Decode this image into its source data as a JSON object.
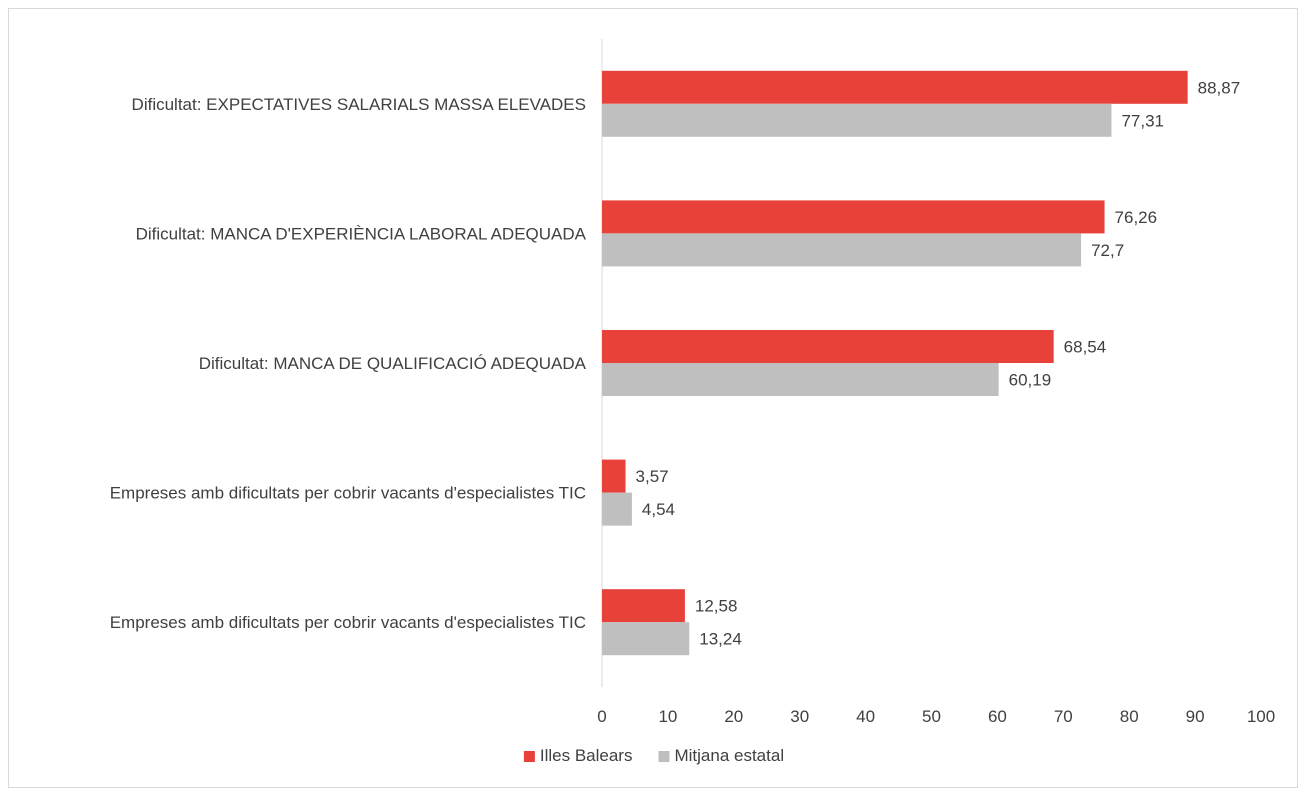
{
  "chart_data": {
    "type": "bar",
    "orientation": "horizontal",
    "categories": [
      "Dificultat: EXPECTATIVES SALARIALS MASSA ELEVADES",
      "Dificultat: MANCA D'EXPERIÈNCIA LABORAL ADEQUADA",
      "Dificultat: MANCA DE QUALIFICACIÓ ADEQUADA",
      "Empreses amb dificultats per cobrir vacants d'especialistes TIC",
      "Empreses amb dificultats per cobrir vacants d'especialistes TIC"
    ],
    "series": [
      {
        "name": "Illes Balears",
        "color": "#e8413a",
        "values": [
          88.87,
          76.26,
          68.54,
          3.57,
          12.58
        ],
        "labels": [
          "88,87",
          "76,26",
          "68,54",
          "3,57",
          "12,58"
        ]
      },
      {
        "name": "Mitjana estatal",
        "color": "#bfbfbf",
        "values": [
          77.31,
          72.7,
          60.19,
          4.54,
          13.24
        ],
        "labels": [
          "77,31",
          "72,7",
          "60,19",
          "4,54",
          "13,24"
        ]
      }
    ],
    "xlim": [
      0,
      100
    ],
    "xticks": [
      "0",
      "10",
      "20",
      "30",
      "40",
      "50",
      "60",
      "70",
      "80",
      "90",
      "100"
    ],
    "title": "",
    "xlabel": "",
    "ylabel": "",
    "grid": false,
    "legend_position": "bottom",
    "axis_color": "#d9d9d9",
    "text_color": "#404040"
  }
}
